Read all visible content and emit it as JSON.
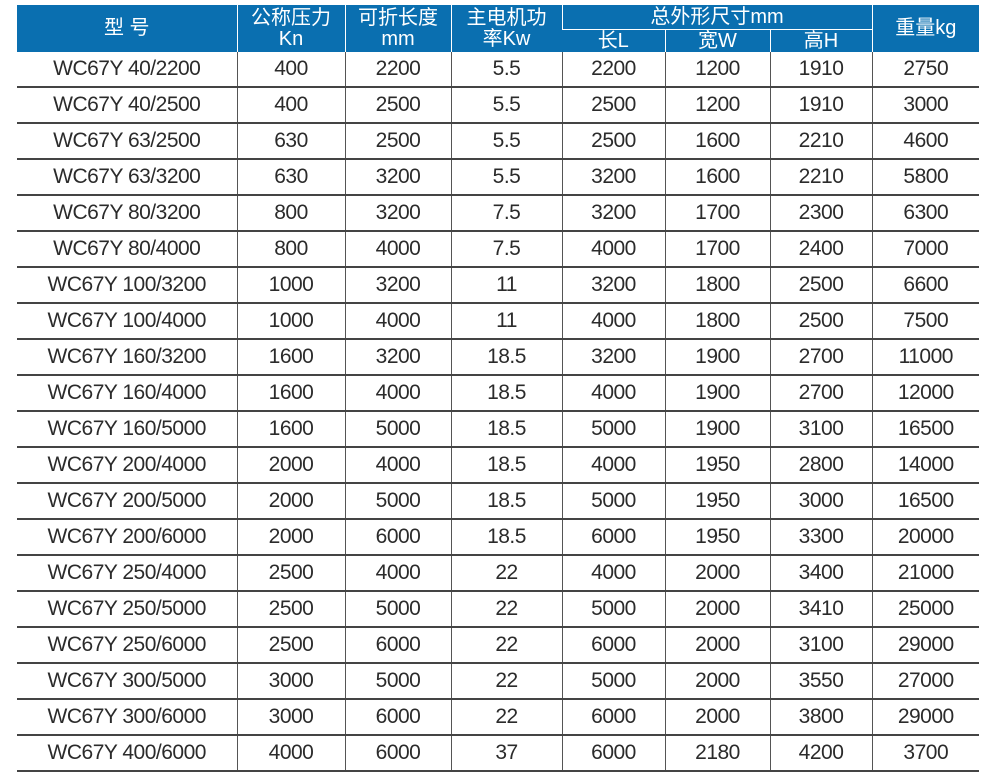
{
  "header": {
    "model": "型 号",
    "force": [
      "公称压力",
      "Kn"
    ],
    "length": [
      "可折长度",
      "mm"
    ],
    "motor": [
      "主电机功",
      "率Kw"
    ],
    "dims": "总外形尺寸mm",
    "dims_sub": [
      "长L",
      "宽W",
      "高H"
    ],
    "weight": "重量kg"
  },
  "rows": [
    [
      "WC67Y 40/2200",
      "400",
      "2200",
      "5.5",
      "2200",
      "1200",
      "1910",
      "2750"
    ],
    [
      "WC67Y 40/2500",
      "400",
      "2500",
      "5.5",
      "2500",
      "1200",
      "1910",
      "3000"
    ],
    [
      "WC67Y 63/2500",
      "630",
      "2500",
      "5.5",
      "2500",
      "1600",
      "2210",
      "4600"
    ],
    [
      "WC67Y 63/3200",
      "630",
      "3200",
      "5.5",
      "3200",
      "1600",
      "2210",
      "5800"
    ],
    [
      "WC67Y 80/3200",
      "800",
      "3200",
      "7.5",
      "3200",
      "1700",
      "2300",
      "6300"
    ],
    [
      "WC67Y 80/4000",
      "800",
      "4000",
      "7.5",
      "4000",
      "1700",
      "2400",
      "7000"
    ],
    [
      "WC67Y 100/3200",
      "1000",
      "3200",
      "11",
      "3200",
      "1800",
      "2500",
      "6600"
    ],
    [
      "WC67Y 100/4000",
      "1000",
      "4000",
      "11",
      "4000",
      "1800",
      "2500",
      "7500"
    ],
    [
      "WC67Y 160/3200",
      "1600",
      "3200",
      "18.5",
      "3200",
      "1900",
      "2700",
      "11000"
    ],
    [
      "WC67Y 160/4000",
      "1600",
      "4000",
      "18.5",
      "4000",
      "1900",
      "2700",
      "12000"
    ],
    [
      "WC67Y 160/5000",
      "1600",
      "5000",
      "18.5",
      "5000",
      "1900",
      "3100",
      "16500"
    ],
    [
      "WC67Y 200/4000",
      "2000",
      "4000",
      "18.5",
      "4000",
      "1950",
      "2800",
      "14000"
    ],
    [
      "WC67Y 200/5000",
      "2000",
      "5000",
      "18.5",
      "5000",
      "1950",
      "3000",
      "16500"
    ],
    [
      "WC67Y 200/6000",
      "2000",
      "6000",
      "18.5",
      "6000",
      "1950",
      "3300",
      "20000"
    ],
    [
      "WC67Y 250/4000",
      "2500",
      "4000",
      "22",
      "4000",
      "2000",
      "3400",
      "21000"
    ],
    [
      "WC67Y 250/5000",
      "2500",
      "5000",
      "22",
      "5000",
      "2000",
      "3410",
      "25000"
    ],
    [
      "WC67Y 250/6000",
      "2500",
      "6000",
      "22",
      "6000",
      "2000",
      "3100",
      "29000"
    ],
    [
      "WC67Y 300/5000",
      "3000",
      "5000",
      "22",
      "5000",
      "2000",
      "3550",
      "27000"
    ],
    [
      "WC67Y 300/6000",
      "3000",
      "6000",
      "22",
      "6000",
      "2000",
      "3800",
      "29000"
    ],
    [
      "WC67Y 400/6000",
      "4000",
      "6000",
      "37",
      "6000",
      "2180",
      "4200",
      "3700"
    ]
  ],
  "colors": {
    "header_bg": "#0a6fb0",
    "header_text": "#ffffff"
  }
}
